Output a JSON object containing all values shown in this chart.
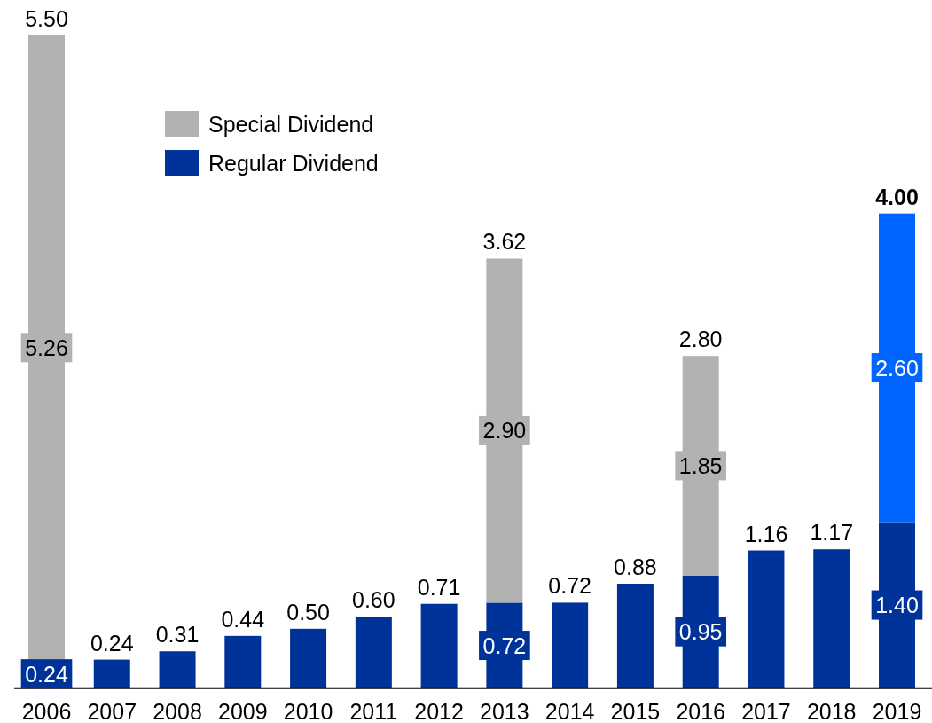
{
  "chart_data": {
    "type": "bar",
    "stacked": true,
    "categories": [
      "2006",
      "2007",
      "2008",
      "2009",
      "2010",
      "2011",
      "2012",
      "2013",
      "2014",
      "2015",
      "2016",
      "2017",
      "2018",
      "2019"
    ],
    "series": [
      {
        "name": "Regular Dividend",
        "color": "#003399",
        "values": [
          0.24,
          0.24,
          0.31,
          0.44,
          0.5,
          0.6,
          0.71,
          0.72,
          0.72,
          0.88,
          0.95,
          1.16,
          1.17,
          1.4
        ],
        "value_labels": [
          "0.24",
          "0.24",
          "0.31",
          "0.44",
          "0.50",
          "0.60",
          "0.71",
          "0.72",
          "0.72",
          "0.88",
          "0.95",
          "1.16",
          "1.17",
          "1.40"
        ]
      },
      {
        "name": "Special Dividend",
        "color": "#b2b2b2",
        "colors": [
          "#b2b2b2",
          null,
          null,
          null,
          null,
          null,
          null,
          "#b2b2b2",
          null,
          null,
          "#b2b2b2",
          null,
          null,
          "#0066ff"
        ],
        "values": [
          5.26,
          null,
          null,
          null,
          null,
          null,
          null,
          2.9,
          null,
          null,
          1.85,
          null,
          null,
          2.6
        ],
        "value_labels": [
          "5.26",
          null,
          null,
          null,
          null,
          null,
          null,
          "2.90",
          null,
          null,
          "1.85",
          null,
          null,
          "2.60"
        ]
      }
    ],
    "totals": [
      "5.50",
      null,
      null,
      null,
      null,
      null,
      null,
      "3.62",
      null,
      null,
      "2.80",
      null,
      null,
      "4.00"
    ],
    "legend": "top left"
  }
}
